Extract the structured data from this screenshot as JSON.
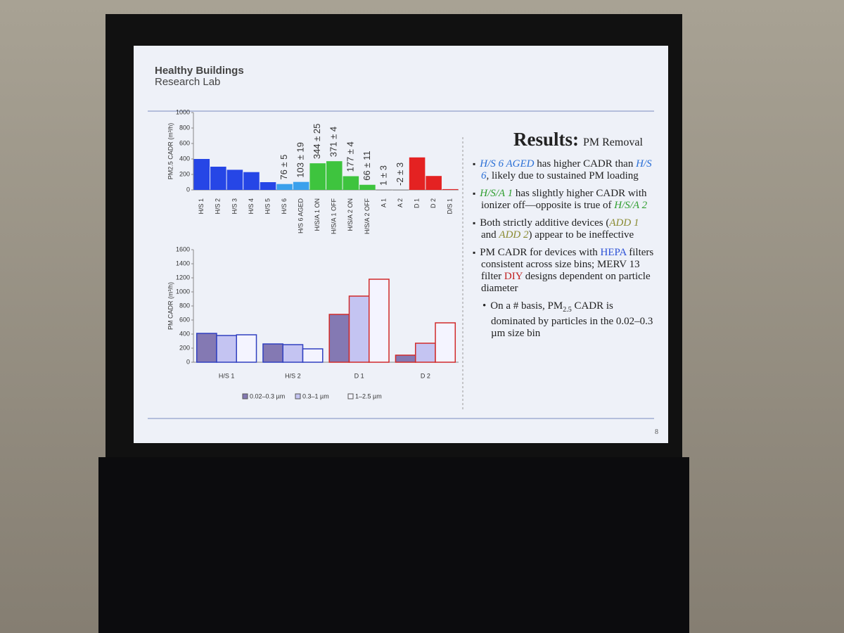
{
  "logo": {
    "line1": "Healthy Buildings",
    "line2": "Research Lab"
  },
  "slide_title": {
    "main": "Results:",
    "sub": "PM Removal"
  },
  "page_number": "8",
  "bullets": [
    {
      "level": 1,
      "segments": [
        {
          "text": "H/S 6 AGED",
          "color": "#2a6fd6",
          "italic": true
        },
        {
          "text": " has higher CADR than "
        },
        {
          "text": "H/S 6",
          "color": "#2a6fd6",
          "italic": true
        },
        {
          "text": ", likely due to sustained PM loading"
        }
      ]
    },
    {
      "level": 1,
      "segments": [
        {
          "text": "H/S/A 1",
          "color": "#2f9e2f",
          "italic": true
        },
        {
          "text": " has slightly higher CADR with ionizer off—opposite is true of "
        },
        {
          "text": "H/S/A 2",
          "color": "#2f9e2f",
          "italic": true
        }
      ]
    },
    {
      "level": 1,
      "segments": [
        {
          "text": "Both strictly additive devices ("
        },
        {
          "text": "ADD 1",
          "color": "#8a8a30",
          "italic": true
        },
        {
          "text": " and "
        },
        {
          "text": "ADD 2",
          "color": "#8a8a30",
          "italic": true
        },
        {
          "text": ") appear to be ineffective"
        }
      ]
    },
    {
      "level": 1,
      "segments": [
        {
          "text": "PM CADR for devices with "
        },
        {
          "text": "HEPA",
          "color": "#2a4fd6"
        },
        {
          "text": " filters consistent across size bins; MERV 13 filter "
        },
        {
          "text": "DIY",
          "color": "#c02020"
        },
        {
          "text": " designs dependent on particle diameter"
        }
      ]
    },
    {
      "level": 2,
      "segments": [
        {
          "text": "On a # basis, PM"
        },
        {
          "text": "2.5",
          "sub": true
        },
        {
          "text": " CADR is dominated by particles in the 0.02–0.3 µm size bin"
        }
      ]
    }
  ],
  "chart_data": [
    {
      "type": "bar",
      "ylabel": "PM2.5 CADR (m³/h)",
      "categories": [
        "H/S 1",
        "H/S 2",
        "H/S 3",
        "H/S 4",
        "H/S 5",
        "H/S 6",
        "H/S 6 AGED",
        "H/S/A 1 ON",
        "H/S/A 1 OFF",
        "H/S/A 2 ON",
        "H/S/A 2 OFF",
        "A 1",
        "A 2",
        "D 1",
        "D 2",
        "D/S 1"
      ],
      "values": [
        400,
        300,
        260,
        230,
        100,
        76,
        103,
        344,
        371,
        177,
        66,
        1,
        -2,
        420,
        180,
        10
      ],
      "value_labels": [
        null,
        null,
        null,
        null,
        null,
        "76 ± 5",
        "103 ± 19",
        "344 ± 25",
        "371 ± 4",
        "177 ± 4",
        "66 ± 11",
        "1 ± 3",
        "-2 ± 3",
        null,
        null,
        null
      ],
      "colors": [
        "#2646e6",
        "#2646e6",
        "#2646e6",
        "#2646e6",
        "#2646e6",
        "#3aa0ec",
        "#3aa0ec",
        "#3ec43e",
        "#3ec43e",
        "#3ec43e",
        "#3ec43e",
        "#555555",
        "#555555",
        "#e42222",
        "#e42222",
        "#e42222"
      ],
      "ylim": [
        0,
        1000
      ],
      "yticks": [
        0,
        200,
        400,
        600,
        800,
        1000
      ]
    },
    {
      "type": "grouped_bar",
      "ylabel": "PM CADR (m³/h)",
      "categories": [
        "H/S 1",
        "H/S 2",
        "D 1",
        "D 2"
      ],
      "edge_colors": [
        "#3040c0",
        "#3040c0",
        "#d02a2a",
        "#d02a2a"
      ],
      "series": [
        {
          "name": "0.02–0.3 µm",
          "color": "#8479b3",
          "values": [
            410,
            260,
            680,
            100
          ]
        },
        {
          "name": "0.3–1 µm",
          "color": "#c4c4f2",
          "values": [
            380,
            250,
            940,
            270
          ]
        },
        {
          "name": "1–2.5 µm",
          "color": "#f4f4ff",
          "values": [
            390,
            190,
            1180,
            560
          ]
        }
      ],
      "ylim": [
        0,
        1600
      ],
      "yticks": [
        0,
        200,
        400,
        600,
        800,
        1000,
        1200,
        1400,
        1600
      ]
    }
  ]
}
